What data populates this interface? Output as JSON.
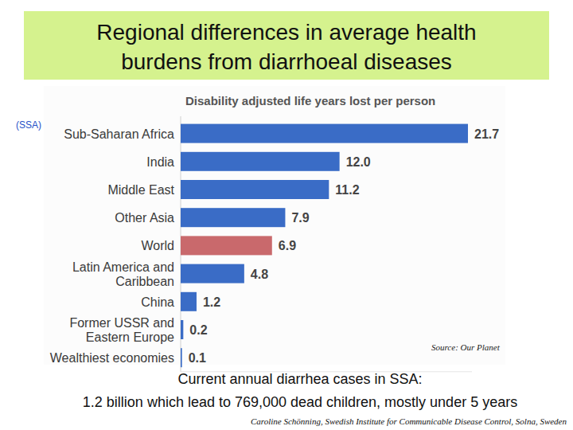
{
  "slide": {
    "title": [
      "Regional differences in average health",
      "burdens from diarrhoeal diseases"
    ],
    "annotation": "(SSA)",
    "source": "Source: Our Planet",
    "notes": [
      "Current annual diarrhea cases in SSA:",
      "1.2 billion which lead to 769,000 dead children, mostly under 5 years"
    ],
    "credit": "Caroline Schönning, Swedish Institute for Communicable Disease Control, Solna, Sweden"
  },
  "chart_data": {
    "type": "bar",
    "title": "Disability adjusted life years lost per person",
    "orientation": "horizontal",
    "data_labels": true,
    "tick_labels": false,
    "categories": [
      "Sub-Saharan Africa",
      "India",
      "Middle East",
      "Other Asia",
      "World",
      "Latin America and\nCaribbean",
      "China",
      "Former USSR and\nEastern Europe",
      "Wealthiest economies"
    ],
    "values": [
      21.7,
      12.0,
      11.2,
      7.9,
      6.9,
      4.8,
      1.2,
      0.2,
      0.1
    ],
    "value_labels": [
      "21.7",
      "12.0",
      "11.2",
      "7.9",
      "6.9",
      "4.8",
      "1.2",
      "0.2",
      "0.1"
    ],
    "colors": [
      "#3a6cc6",
      "#3a6cc6",
      "#3a6cc6",
      "#3a6cc6",
      "#c9696c",
      "#3a6cc6",
      "#3a6cc6",
      "#3a6cc6",
      "#3a6cc6"
    ],
    "xlim": [
      0,
      22
    ]
  }
}
